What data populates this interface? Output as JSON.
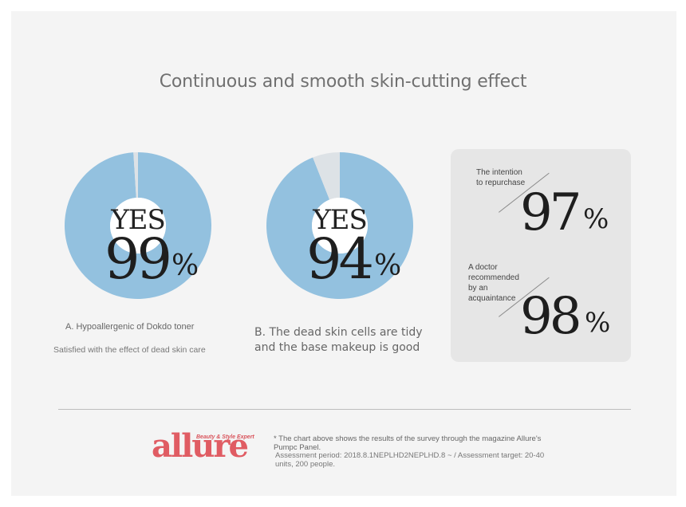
{
  "title": "Continuous and smooth skin-cutting effect",
  "chart_data": [
    {
      "type": "pie",
      "label": "YES",
      "value_text": "99",
      "percent_sign": "%",
      "values": [
        99,
        1
      ],
      "colors": [
        "#93c1df",
        "#dde2e6"
      ],
      "caption": "A. Hypoallergenic of Dokdo toner",
      "subcaption": "Satisfied with the effect of dead skin care"
    },
    {
      "type": "pie",
      "label": "YES",
      "value_text": "94",
      "percent_sign": "%",
      "values": [
        94,
        6
      ],
      "colors": [
        "#93c1df",
        "#dde2e6"
      ],
      "caption": "B. The dead skin cells are tidy\nand the base makeup is good"
    }
  ],
  "stats": [
    {
      "label": "The intention\nto repurchase",
      "value": "97",
      "sign": "%"
    },
    {
      "label": "A doctor\nrecommended\nby an\nacquaintance",
      "value": "98",
      "sign": "%"
    }
  ],
  "footer": {
    "logo": "allure",
    "logo_tagline": "Beauty & Style Expert",
    "note": "* The chart above shows the results of the survey through the magazine Allure's Pumpc Panel.",
    "note2": "Assessment period: 2018.8.1NEPLHD2NEPLHD.8 ~ / Assessment target: 20-40 units, 200 people."
  },
  "colors": {
    "donut": "#93c1df",
    "remainder": "#dde2e6",
    "logo": "#e05c63"
  }
}
